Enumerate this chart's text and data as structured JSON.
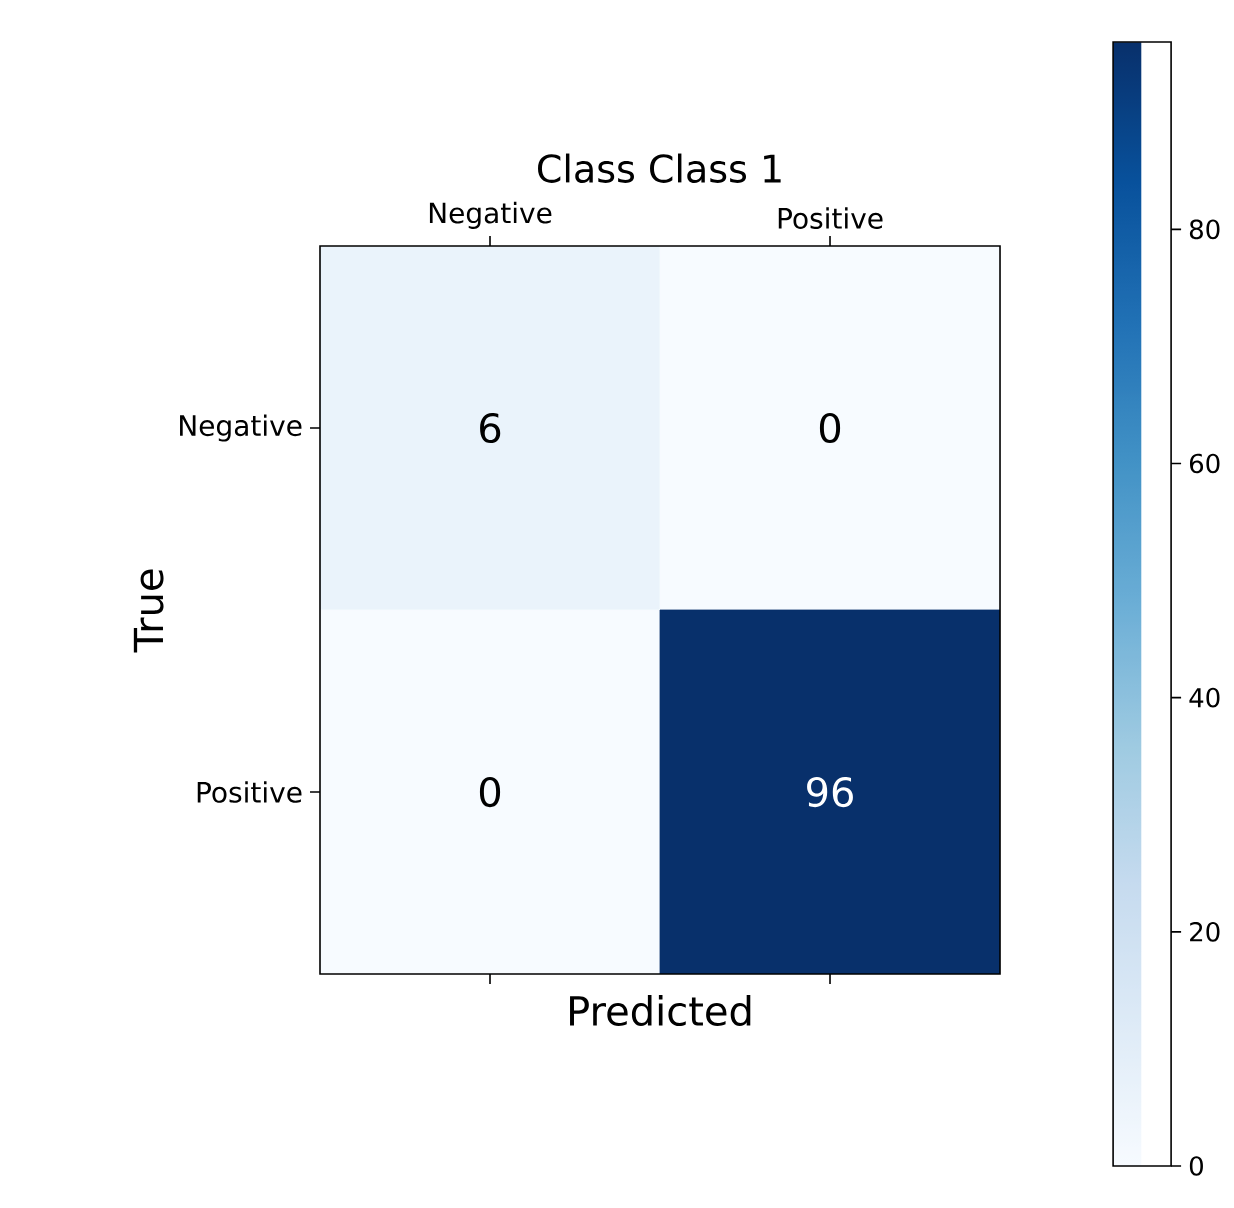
{
  "chart_data": {
    "type": "heatmap",
    "title": "Class Class 1",
    "xlabel": "Predicted",
    "ylabel": "True",
    "categories": [
      "Negative",
      "Positive"
    ],
    "y_categories": [
      "Negative",
      "Positive"
    ],
    "cells": [
      [
        6,
        0
      ],
      [
        0,
        96
      ]
    ],
    "clim": [
      0,
      96
    ],
    "cticks": [
      0,
      20,
      40,
      60,
      80
    ],
    "data_labels": true
  }
}
